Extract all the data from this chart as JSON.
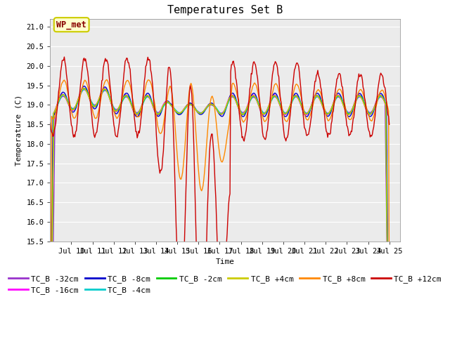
{
  "title": "Temperatures Set B",
  "xlabel": "Time",
  "ylabel": "Temperature (C)",
  "ylim": [
    15.5,
    21.2
  ],
  "xlim_days": [
    9.0,
    25.5
  ],
  "x_tick_positions": [
    10,
    11,
    12,
    13,
    14,
    15,
    16,
    17,
    18,
    19,
    20,
    21,
    22,
    23,
    24,
    25
  ],
  "x_tick_labels": [
    "Jul 10",
    "Jul 11",
    "Jul 12",
    "Jul 13",
    "Jul 14",
    "Jul 15",
    "Jul 16",
    "Jul 17",
    "Jul 18",
    "Jul 19",
    "Jul 20",
    "Jul 21",
    "Jul 22",
    "Jul 23",
    "Jul 24",
    "Jul 25"
  ],
  "yticks": [
    15.5,
    16.0,
    16.5,
    17.0,
    17.5,
    18.0,
    18.5,
    19.0,
    19.5,
    20.0,
    20.5,
    21.0
  ],
  "series": [
    {
      "label": "TC_B -32cm",
      "color": "#9933CC"
    },
    {
      "label": "TC_B -16cm",
      "color": "#FF00FF"
    },
    {
      "label": "TC_B -8cm",
      "color": "#0000CC"
    },
    {
      "label": "TC_B -4cm",
      "color": "#00CCCC"
    },
    {
      "label": "TC_B -2cm",
      "color": "#00CC00"
    },
    {
      "label": "TC_B +4cm",
      "color": "#CCCC00"
    },
    {
      "label": "TC_B +8cm",
      "color": "#FF8800"
    },
    {
      "label": "TC_B +12cm",
      "color": "#CC0000"
    }
  ],
  "plot_bg": "#EBEBEB",
  "title_fontsize": 11,
  "axis_fontsize": 8,
  "tick_fontsize": 7.5,
  "legend_fontsize": 8,
  "line_width": 1.0,
  "grid_color": "#FFFFFF",
  "n_points": 480
}
